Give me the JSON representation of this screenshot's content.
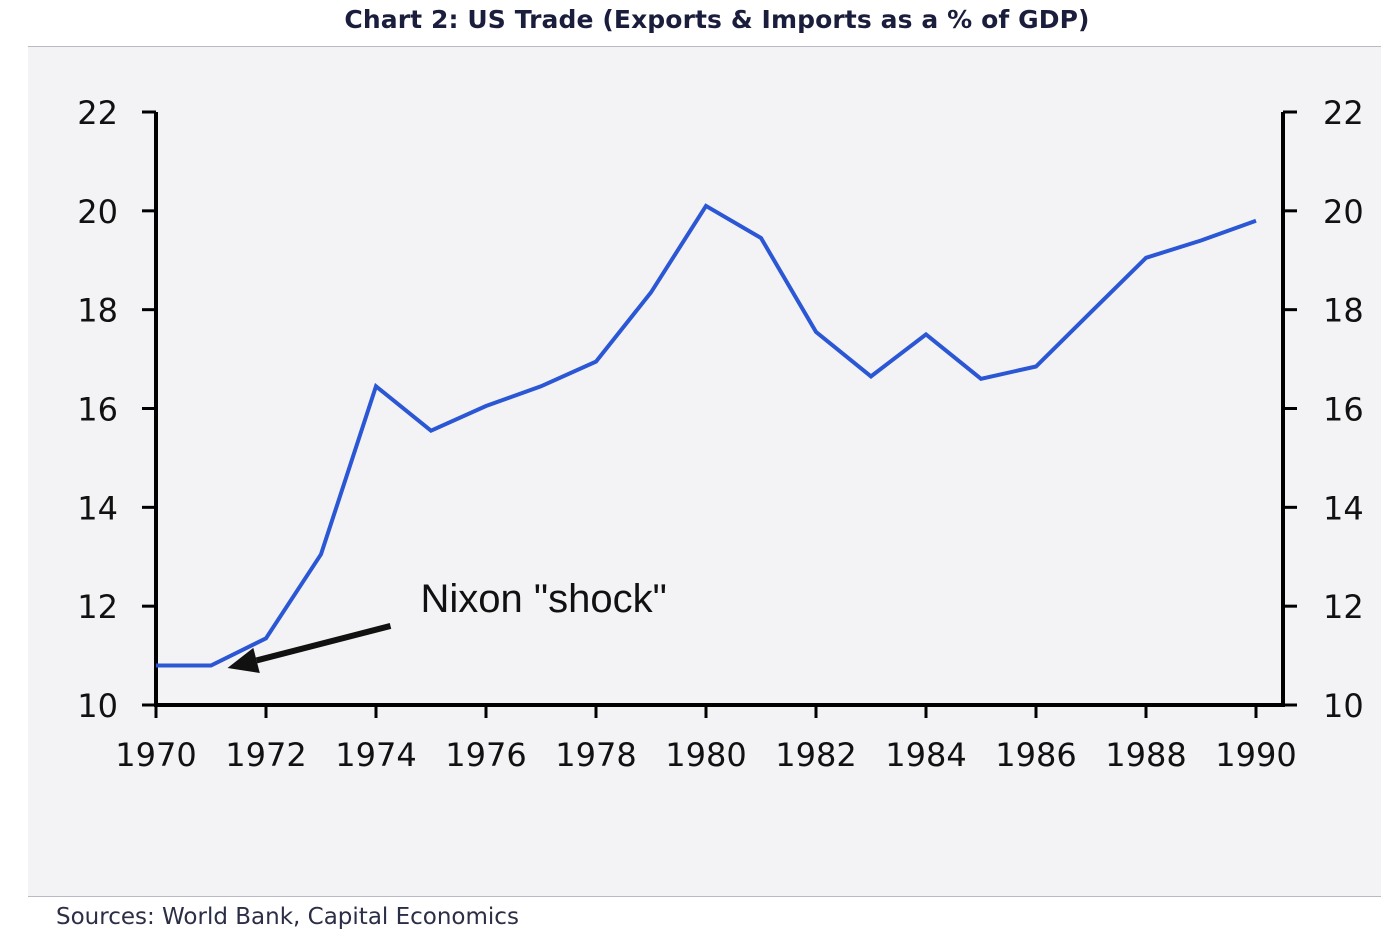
{
  "title": "Chart 2: US Trade (Exports & Imports as a % of GDP)",
  "source": "Sources: World Bank, Capital Economics",
  "colors": {
    "line": "#2b57d4",
    "axis": "#000000",
    "panel_background": "#f3f3f6",
    "title": "#1a1d3c"
  },
  "chart_data": {
    "type": "line",
    "title": "Chart 2: US Trade (Exports & Imports as a % of GDP)",
    "xlabel": "",
    "ylabel": "",
    "xlim": [
      1970,
      1990
    ],
    "ylim": [
      10,
      22
    ],
    "grid": false,
    "dual_y_axis": true,
    "x_ticks": [
      "1970",
      "1972",
      "1974",
      "1976",
      "1978",
      "1980",
      "1982",
      "1984",
      "1986",
      "1988",
      "1990"
    ],
    "y_ticks": [
      "10",
      "12",
      "14",
      "16",
      "18",
      "20",
      "22"
    ],
    "series": [
      {
        "x": [
          1970,
          1971,
          1972,
          1973,
          1974,
          1975,
          1976,
          1977,
          1978,
          1979,
          1980,
          1981,
          1982,
          1983,
          1984,
          1985,
          1986,
          1987,
          1988,
          1989,
          1990
        ],
        "values": [
          10.8,
          10.8,
          11.35,
          13.05,
          16.45,
          15.55,
          16.05,
          16.45,
          16.95,
          18.35,
          20.1,
          19.45,
          17.55,
          16.65,
          17.5,
          16.6,
          16.85,
          17.95,
          19.05,
          19.4,
          19.8
        ]
      }
    ],
    "annotations": [
      {
        "text": "Nixon \"shock\"",
        "target": {
          "x": 1971.3,
          "y": 10.75
        }
      }
    ]
  }
}
